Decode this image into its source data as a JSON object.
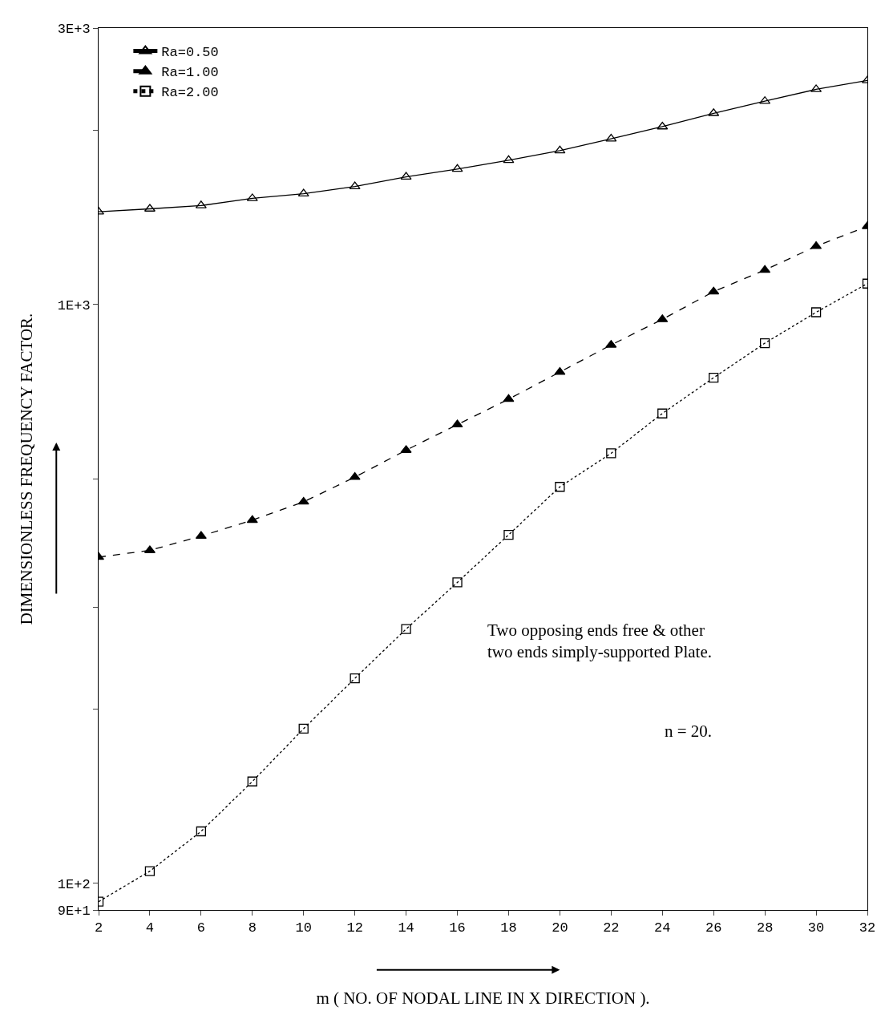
{
  "chart_data": {
    "type": "line",
    "xlabel": "m ( NO. OF NODAL LINE IN X DIRECTION ).",
    "ylabel": "DIMENSIONLESS FREQUENCY FACTOR.",
    "x": [
      2,
      4,
      6,
      8,
      10,
      12,
      14,
      16,
      18,
      20,
      22,
      24,
      26,
      28,
      30,
      32
    ],
    "series": [
      {
        "name": "Ra=0.50",
        "color": "#000000",
        "marker": "triangle-open",
        "line_style": "solid",
        "values": [
          1445,
          1462,
          1481,
          1524,
          1553,
          1598,
          1660,
          1713,
          1774,
          1843,
          1932,
          2027,
          2138,
          2243,
          2351,
          2435
        ]
      },
      {
        "name": "Ra=1.00",
        "color": "#000000",
        "marker": "triangle",
        "line_style": "dashed",
        "values": [
          366,
          376,
          398,
          424,
          456,
          503,
          560,
          620,
          686,
          764,
          851,
          942,
          1052,
          1146,
          1260,
          1364
        ]
      },
      {
        "name": "Ra=2.00",
        "color": "#000000",
        "marker": "square-open",
        "line_style": "dotted",
        "values": [
          93,
          105,
          123,
          150,
          185,
          226,
          275,
          331,
          400,
          484,
          553,
          648,
          747,
          857,
          969,
          1086
        ]
      }
    ],
    "log": "y",
    "xlim": [
      2,
      32
    ],
    "xticks": [
      2,
      4,
      6,
      8,
      10,
      12,
      14,
      16,
      18,
      20,
      22,
      24,
      26,
      28,
      30,
      32
    ],
    "ylim": [
      90,
      3000
    ],
    "yticks": [
      {
        "value": 90,
        "label": "9E+1"
      },
      {
        "value": 100,
        "label": "1E+2"
      },
      {
        "value": 200,
        "label": null
      },
      {
        "value": 300,
        "label": null
      },
      {
        "value": 500,
        "label": null
      },
      {
        "value": 1000,
        "label": "1E+3"
      },
      {
        "value": 2000,
        "label": null
      },
      {
        "value": 3000,
        "label": "3E+3"
      }
    ],
    "legend": "top left",
    "annotations": [
      {
        "text": "Two opposing ends free & other\ntwo ends simply-supported Plate."
      },
      {
        "text": "n = 20."
      }
    ]
  }
}
